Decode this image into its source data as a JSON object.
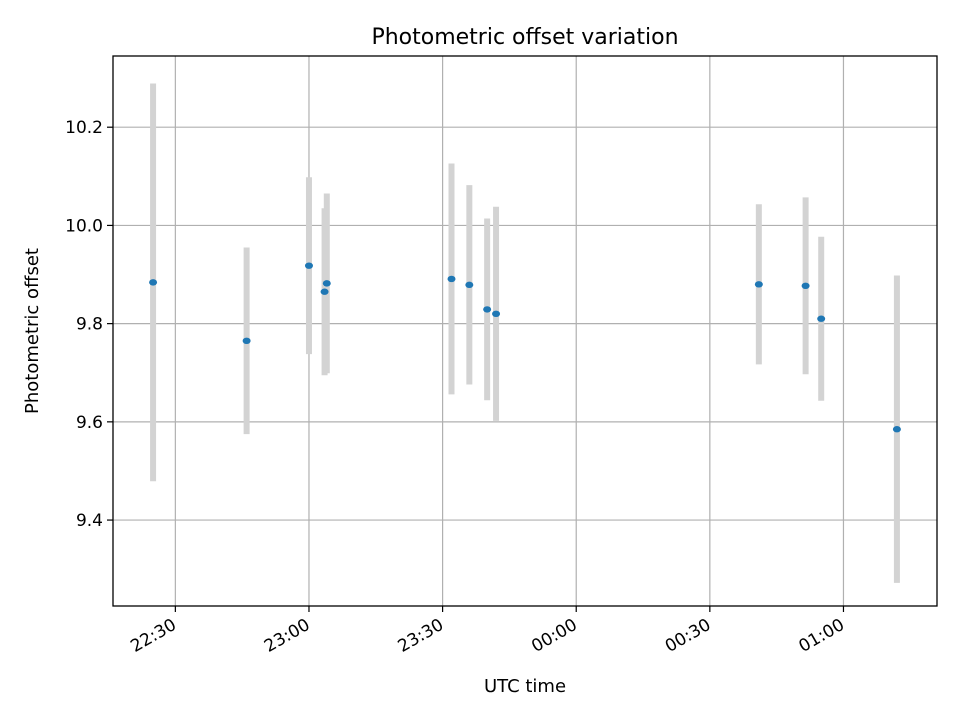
{
  "chart_data": {
    "type": "scatter",
    "title": "Photometric offset variation",
    "xlabel": "UTC time",
    "ylabel": "Photometric offset",
    "xlim": [
      "22:16",
      "01:21"
    ],
    "ylim": [
      9.225,
      10.345
    ],
    "x_ticks": [
      "22:30",
      "23:00",
      "23:30",
      "00:00",
      "00:30",
      "01:00"
    ],
    "y_ticks": [
      "9.4",
      "9.6",
      "9.8",
      "10.0",
      "10.2"
    ],
    "grid": true,
    "legend": "none",
    "marker_color": "#1f77b4",
    "errorbar_color": "#d3d3d3",
    "points": [
      {
        "x": "22:25",
        "y": 9.884,
        "err": 0.405
      },
      {
        "x": "22:46",
        "y": 9.765,
        "err": 0.19
      },
      {
        "x": "23:00",
        "y": 9.918,
        "err": 0.18
      },
      {
        "x": "23:03.5",
        "y": 9.865,
        "err": 0.17
      },
      {
        "x": "23:04",
        "y": 9.882,
        "err": 0.183
      },
      {
        "x": "23:32",
        "y": 9.891,
        "err": 0.235
      },
      {
        "x": "23:36",
        "y": 9.879,
        "err": 0.203
      },
      {
        "x": "23:40",
        "y": 9.829,
        "err": 0.185
      },
      {
        "x": "23:42",
        "y": 9.82,
        "err": 0.218
      },
      {
        "x": "00:41",
        "y": 9.88,
        "err": 0.163
      },
      {
        "x": "00:51.5",
        "y": 9.877,
        "err": 0.18
      },
      {
        "x": "00:55",
        "y": 9.81,
        "err": 0.167
      },
      {
        "x": "01:12",
        "y": 9.585,
        "err": 0.313
      }
    ]
  }
}
